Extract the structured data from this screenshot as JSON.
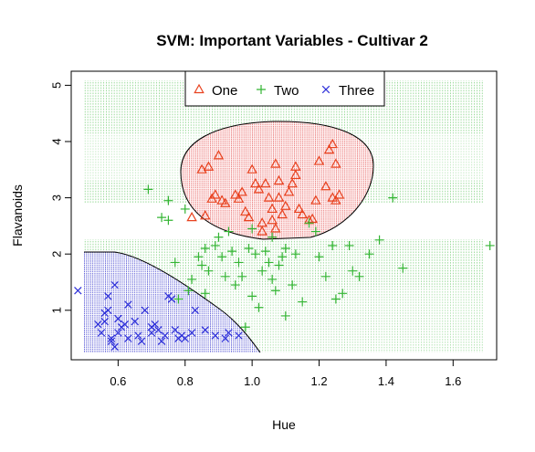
{
  "chart_data": {
    "type": "scatter",
    "title": "SVM: Important Variables - Cultivar 2",
    "xlabel": "Hue",
    "ylabel": "Flavanoids",
    "xlim": [
      0.46,
      1.73
    ],
    "ylim": [
      0.12,
      5.25
    ],
    "x_ticks": [
      "0.6",
      "0.8",
      "1.0",
      "1.2",
      "1.4",
      "1.6"
    ],
    "y_ticks": [
      "1",
      "2",
      "3",
      "4",
      "5"
    ],
    "grid": false,
    "legend_position": "top",
    "background_region": "decision regions shown as dense vertical dotted shading",
    "series": [
      {
        "name": "One",
        "marker": "triangle",
        "color": "#e8421f",
        "points": [
          [
            0.82,
            2.65
          ],
          [
            0.85,
            3.5
          ],
          [
            0.86,
            2.68
          ],
          [
            0.87,
            3.55
          ],
          [
            0.88,
            2.98
          ],
          [
            0.89,
            3.05
          ],
          [
            0.9,
            3.75
          ],
          [
            0.91,
            2.95
          ],
          [
            0.92,
            2.9
          ],
          [
            0.95,
            3.05
          ],
          [
            0.96,
            2.98
          ],
          [
            0.97,
            3.1
          ],
          [
            0.98,
            2.75
          ],
          [
            0.99,
            2.65
          ],
          [
            1.0,
            3.5
          ],
          [
            1.01,
            3.25
          ],
          [
            1.02,
            3.15
          ],
          [
            1.03,
            2.55
          ],
          [
            1.03,
            2.4
          ],
          [
            1.04,
            3.25
          ],
          [
            1.05,
            3.0
          ],
          [
            1.06,
            2.8
          ],
          [
            1.06,
            2.6
          ],
          [
            1.07,
            3.6
          ],
          [
            1.07,
            2.45
          ],
          [
            1.08,
            3.3
          ],
          [
            1.08,
            3.0
          ],
          [
            1.09,
            2.7
          ],
          [
            1.1,
            2.85
          ],
          [
            1.11,
            3.1
          ],
          [
            1.12,
            3.25
          ],
          [
            1.13,
            3.55
          ],
          [
            1.13,
            3.4
          ],
          [
            1.14,
            2.8
          ],
          [
            1.15,
            2.7
          ],
          [
            1.17,
            2.6
          ],
          [
            1.18,
            2.62
          ],
          [
            1.19,
            2.95
          ],
          [
            1.2,
            3.65
          ],
          [
            1.22,
            3.2
          ],
          [
            1.23,
            3.85
          ],
          [
            1.24,
            3.0
          ],
          [
            1.24,
            3.95
          ],
          [
            1.25,
            3.6
          ],
          [
            1.25,
            2.95
          ],
          [
            1.26,
            3.05
          ]
        ]
      },
      {
        "name": "Two",
        "marker": "plus",
        "color": "#33b533",
        "points": [
          [
            0.69,
            3.15
          ],
          [
            0.73,
            2.65
          ],
          [
            0.75,
            2.6
          ],
          [
            0.75,
            2.95
          ],
          [
            0.77,
            1.85
          ],
          [
            0.78,
            1.2
          ],
          [
            0.8,
            2.8
          ],
          [
            0.81,
            1.35
          ],
          [
            0.82,
            1.55
          ],
          [
            0.84,
            1.95
          ],
          [
            0.85,
            1.8
          ],
          [
            0.86,
            1.3
          ],
          [
            0.86,
            2.1
          ],
          [
            0.87,
            1.7
          ],
          [
            0.89,
            2.15
          ],
          [
            0.9,
            2.3
          ],
          [
            0.91,
            1.95
          ],
          [
            0.92,
            1.6
          ],
          [
            0.93,
            2.4
          ],
          [
            0.94,
            2.05
          ],
          [
            0.95,
            1.45
          ],
          [
            0.96,
            1.85
          ],
          [
            0.97,
            1.6
          ],
          [
            0.98,
            0.7
          ],
          [
            0.99,
            2.1
          ],
          [
            1.0,
            2.45
          ],
          [
            1.0,
            1.25
          ],
          [
            1.01,
            2.0
          ],
          [
            1.02,
            1.05
          ],
          [
            1.03,
            1.7
          ],
          [
            1.04,
            2.05
          ],
          [
            1.05,
            1.85
          ],
          [
            1.06,
            2.3
          ],
          [
            1.06,
            1.55
          ],
          [
            1.07,
            1.35
          ],
          [
            1.08,
            1.8
          ],
          [
            1.09,
            1.95
          ],
          [
            1.1,
            2.1
          ],
          [
            1.1,
            0.9
          ],
          [
            1.12,
            1.45
          ],
          [
            1.13,
            2.0
          ],
          [
            1.15,
            1.15
          ],
          [
            1.17,
            2.55
          ],
          [
            1.19,
            2.4
          ],
          [
            1.2,
            1.95
          ],
          [
            1.22,
            1.6
          ],
          [
            1.24,
            2.15
          ],
          [
            1.25,
            1.2
          ],
          [
            1.27,
            1.3
          ],
          [
            1.29,
            2.15
          ],
          [
            1.3,
            1.7
          ],
          [
            1.32,
            1.6
          ],
          [
            1.35,
            2.0
          ],
          [
            1.38,
            2.25
          ],
          [
            1.42,
            3.0
          ],
          [
            1.45,
            1.75
          ],
          [
            1.71,
            2.15
          ]
        ]
      },
      {
        "name": "Three",
        "marker": "cross",
        "color": "#2c2ed9",
        "points": [
          [
            0.48,
            1.35
          ],
          [
            0.54,
            0.75
          ],
          [
            0.55,
            0.6
          ],
          [
            0.56,
            0.8
          ],
          [
            0.56,
            0.95
          ],
          [
            0.57,
            1.25
          ],
          [
            0.57,
            1.0
          ],
          [
            0.58,
            0.45
          ],
          [
            0.58,
            0.5
          ],
          [
            0.59,
            0.35
          ],
          [
            0.59,
            1.45
          ],
          [
            0.6,
            0.6
          ],
          [
            0.6,
            0.85
          ],
          [
            0.61,
            0.7
          ],
          [
            0.62,
            0.75
          ],
          [
            0.63,
            0.5
          ],
          [
            0.63,
            1.1
          ],
          [
            0.65,
            0.8
          ],
          [
            0.66,
            0.55
          ],
          [
            0.67,
            0.45
          ],
          [
            0.68,
            1.0
          ],
          [
            0.7,
            0.7
          ],
          [
            0.7,
            0.6
          ],
          [
            0.71,
            0.75
          ],
          [
            0.72,
            0.65
          ],
          [
            0.73,
            0.45
          ],
          [
            0.74,
            0.55
          ],
          [
            0.75,
            1.25
          ],
          [
            0.76,
            1.2
          ],
          [
            0.77,
            0.65
          ],
          [
            0.78,
            0.5
          ],
          [
            0.79,
            0.55
          ],
          [
            0.8,
            0.5
          ],
          [
            0.82,
            0.6
          ],
          [
            0.83,
            1.0
          ],
          [
            0.86,
            0.65
          ],
          [
            0.89,
            0.55
          ],
          [
            0.92,
            0.5
          ],
          [
            0.93,
            0.6
          ],
          [
            0.96,
            0.55
          ]
        ]
      }
    ]
  }
}
